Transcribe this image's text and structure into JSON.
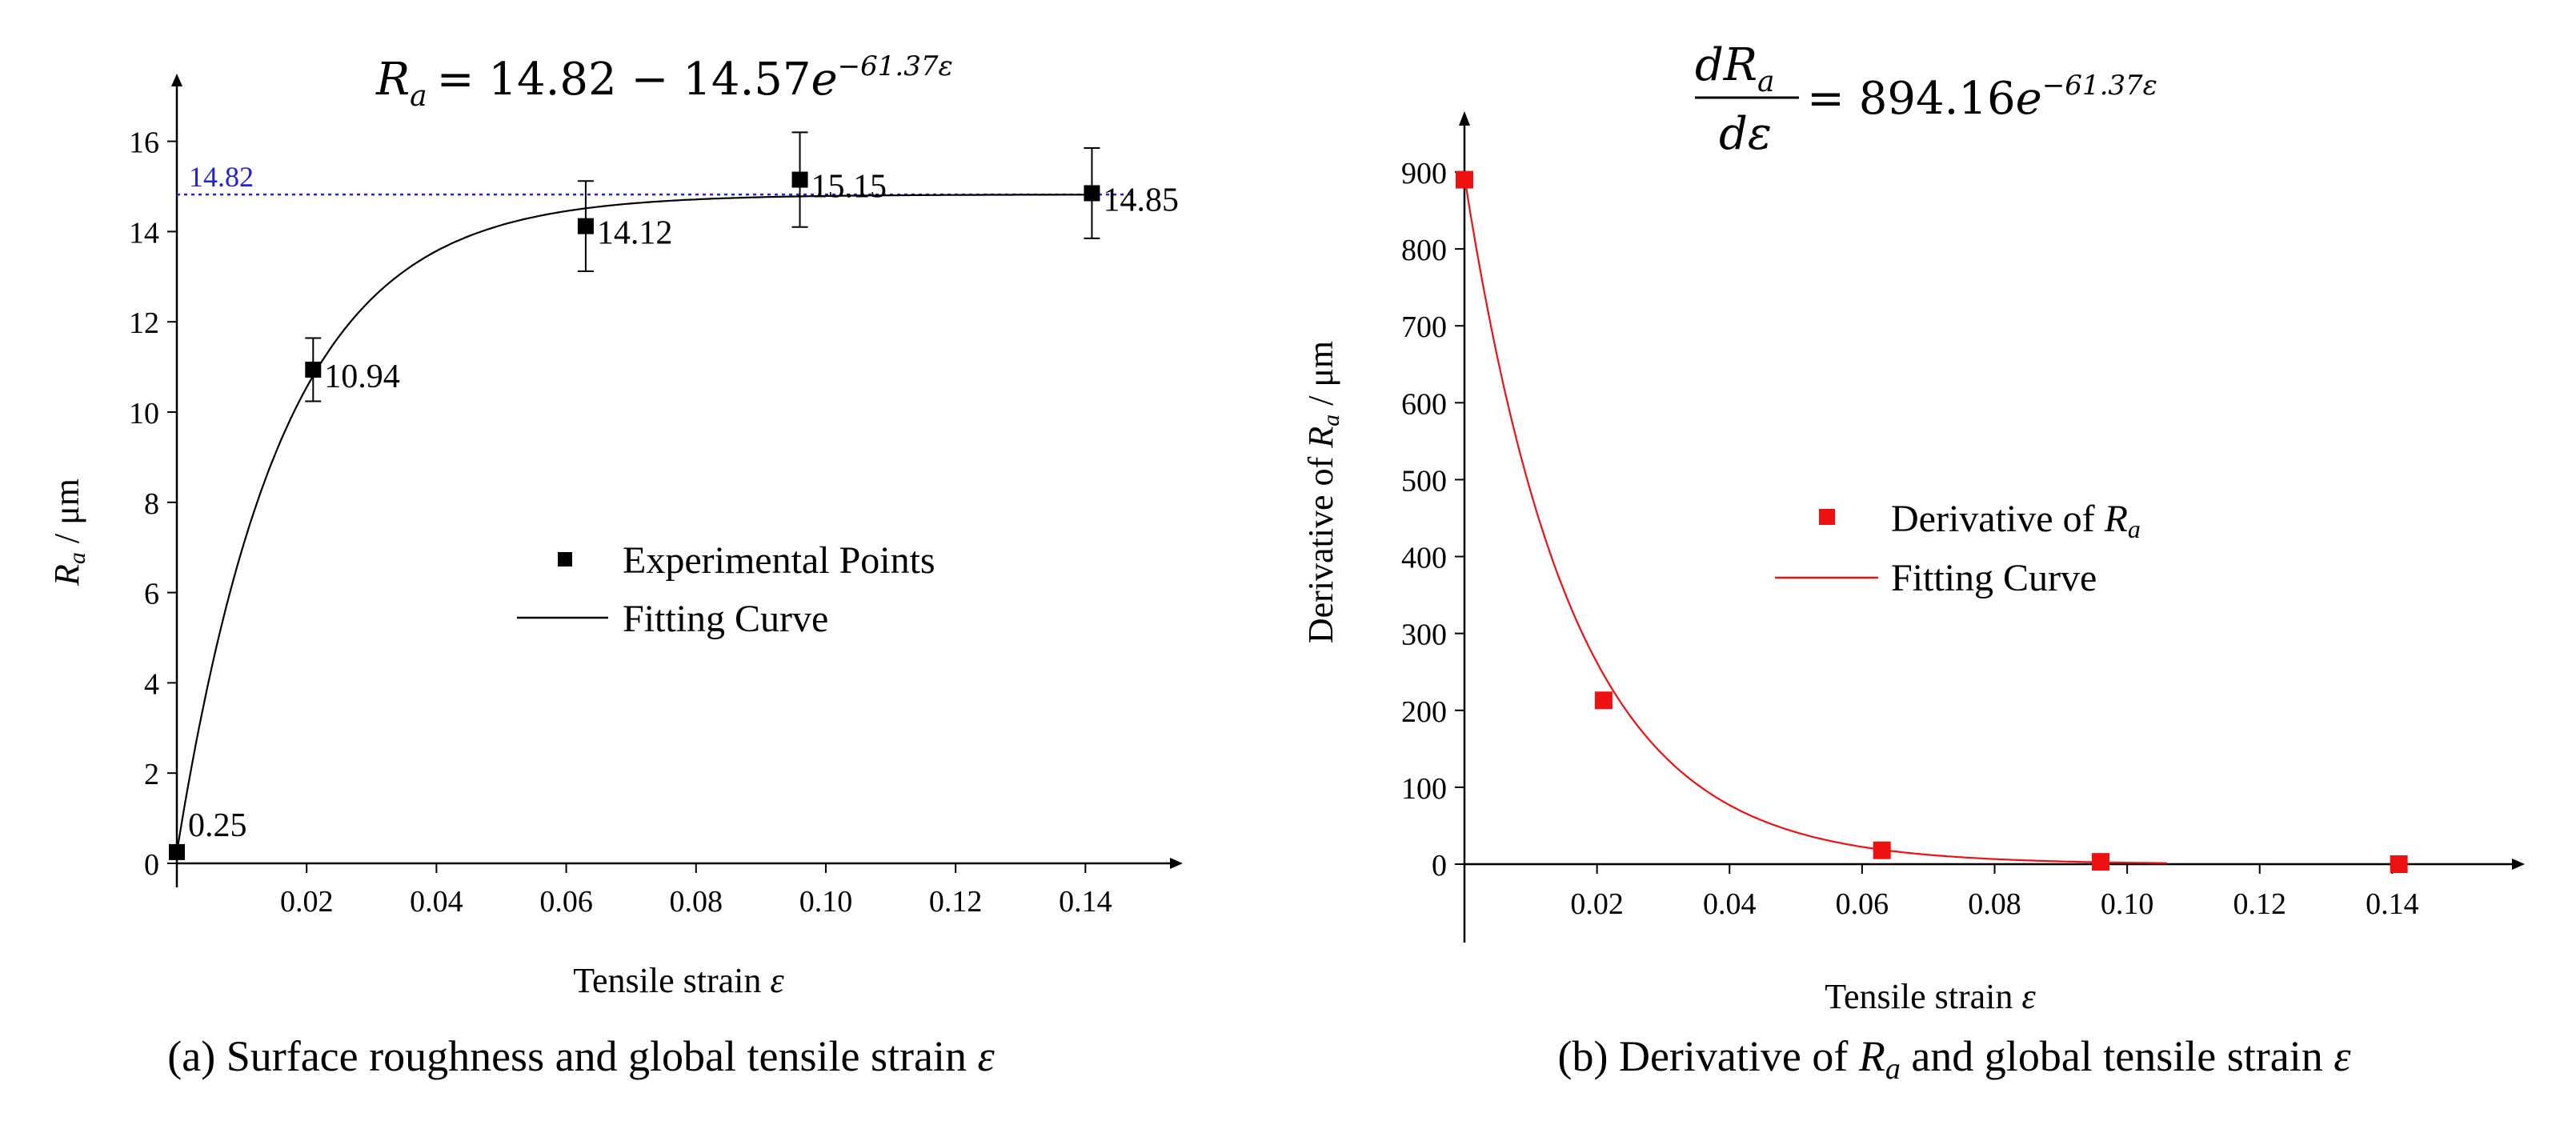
{
  "chart_data": [
    {
      "type": "scatter",
      "panel": "a",
      "equation": {
        "lhs": "R",
        "lhs_sub": "a",
        "rhs": "= 14.82 − 14.57",
        "base": "e",
        "exponent": "−61.37ε"
      },
      "xlabel": "Tensile strain ",
      "xlabel_sym": "ε",
      "ylabel": "R",
      "ylabel_sub": "a",
      "ylabel_unit": " / μm",
      "xlim": [
        0,
        0.155
      ],
      "ylim": [
        0,
        17.5
      ],
      "xticks": [
        0.02,
        0.04,
        0.06,
        0.08,
        0.1,
        0.12,
        0.14
      ],
      "xtick_labels": [
        "0.02",
        "0.04",
        "0.06",
        "0.08",
        "0.10",
        "0.12",
        "0.14"
      ],
      "yticks": [
        0,
        2,
        4,
        6,
        8,
        10,
        12,
        14,
        16
      ],
      "ytick_labels": [
        "0",
        "2",
        "4",
        "6",
        "8",
        "10",
        "12",
        "14",
        "16"
      ],
      "points": {
        "x": [
          0.0,
          0.021,
          0.063,
          0.096,
          0.141
        ],
        "y": [
          0.25,
          10.94,
          14.12,
          15.15,
          14.85
        ],
        "err": [
          0.0,
          0.7,
          1.0,
          1.05,
          1.0
        ],
        "labels": [
          "0.25",
          "10.94",
          "14.12",
          "15.15",
          "14.85"
        ]
      },
      "fit": {
        "a": 14.82,
        "b": 14.57,
        "k": 61.37,
        "x_start": 0.0,
        "x_end": 0.141
      },
      "asymptote": {
        "value": 14.82,
        "label": "14.82",
        "color": "#2222dd"
      },
      "legend": [
        {
          "label": "Experimental Points",
          "marker": "square",
          "color": "#000000"
        },
        {
          "label": "Fitting Curve",
          "marker": "line",
          "color": "#000000"
        }
      ],
      "caption": {
        "prefix": "(a) Surface roughness and global tensile strain ",
        "sym": "ε"
      }
    },
    {
      "type": "scatter",
      "panel": "b",
      "equation": {
        "num": "dR",
        "num_sub": "a",
        "den": "dε",
        "rhs": "= 894.16",
        "base": "e",
        "exponent": "−61.37ε"
      },
      "xlabel": "Tensile strain ",
      "xlabel_sym": "ε",
      "ylabel": "Derivative of ",
      "ylabel_sym": "R",
      "ylabel_sub": "a",
      "ylabel_unit": " / μm",
      "xlim": [
        0,
        0.16
      ],
      "ylim": [
        -100,
        960
      ],
      "xticks": [
        0.02,
        0.04,
        0.06,
        0.08,
        0.1,
        0.12,
        0.14
      ],
      "xtick_labels": [
        "0.02",
        "0.04",
        "0.06",
        "0.08",
        "0.10",
        "0.12",
        "0.14"
      ],
      "yticks": [
        0,
        100,
        200,
        300,
        400,
        500,
        600,
        700,
        800,
        900
      ],
      "ytick_labels": [
        "0",
        "100",
        "200",
        "300",
        "400",
        "500",
        "600",
        "700",
        "800",
        "900"
      ],
      "points": {
        "x": [
          0.0,
          0.021,
          0.063,
          0.096,
          0.141
        ],
        "y": [
          890,
          213,
          18,
          3,
          0
        ]
      },
      "fit": {
        "a": 894.16,
        "k": 61.37,
        "x_start": 0.0,
        "x_end": 0.106
      },
      "color": "#ee1111",
      "legend": [
        {
          "label": "Derivative of ",
          "sym": "R",
          "sub": "a",
          "marker": "square",
          "color": "#ee1111"
        },
        {
          "label": "Fitting Curve",
          "marker": "line",
          "color": "#ee1111"
        }
      ],
      "caption": {
        "prefix": "(b) Derivative of ",
        "sym": "R",
        "sub": "a",
        "mid": " and global tensile strain ",
        "sym2": "ε"
      }
    }
  ]
}
